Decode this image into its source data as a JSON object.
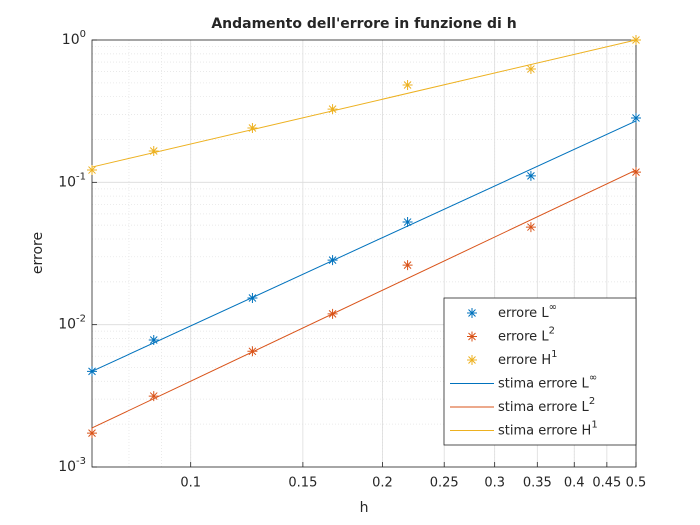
{
  "chart_data": {
    "type": "line",
    "title": "Andamento dell'errore in funzione di h",
    "xlabel": "h",
    "ylabel": "errore",
    "xscale": "log",
    "yscale": "log",
    "grid": true,
    "minor_grid": true,
    "legend": "southeast",
    "xlim": [
      0.07,
      0.5
    ],
    "ylim": [
      0.001,
      1
    ],
    "xticks": [
      0.1,
      0.15,
      0.2,
      0.25,
      0.3,
      0.35,
      0.4,
      0.45,
      0.5
    ],
    "yticks": [
      {
        "value": 0.001,
        "label": "10",
        "exponent": "-3"
      },
      {
        "value": 0.01,
        "label": "10",
        "exponent": "-2"
      },
      {
        "value": 0.1,
        "label": "10",
        "exponent": "-1"
      },
      {
        "value": 1,
        "label": "10",
        "exponent": "0"
      }
    ],
    "x": [
      0.07,
      0.0875,
      0.125,
      0.167,
      0.219,
      0.342,
      0.5
    ],
    "series": [
      {
        "name": "errore L",
        "name_sup": "∞",
        "color": "#0072BD",
        "marker": "*",
        "values": [
          0.0047,
          0.0078,
          0.0154,
          0.0284,
          0.0526,
          0.111,
          0.283
        ]
      },
      {
        "name": "errore L",
        "name_sup": "2",
        "color": "#D95319",
        "marker": "*",
        "values": [
          0.00173,
          0.00315,
          0.0065,
          0.0119,
          0.0262,
          0.0485,
          0.118
        ]
      },
      {
        "name": "errore H",
        "name_sup": "1",
        "color": "#EDB120",
        "marker": "*",
        "values": [
          0.122,
          0.166,
          0.241,
          0.327,
          0.483,
          0.625,
          1.0
        ]
      },
      {
        "name": "stima errore L",
        "name_sup": "∞",
        "color": "#0072BD",
        "x": [
          0.07,
          0.5
        ],
        "values": [
          0.0047,
          0.27
        ]
      },
      {
        "name": "stima errore L",
        "name_sup": "2",
        "color": "#D95319",
        "x": [
          0.07,
          0.5
        ],
        "values": [
          0.00188,
          0.122
        ]
      },
      {
        "name": "stima errore H",
        "name_sup": "1",
        "color": "#EDB120",
        "x": [
          0.07,
          0.5
        ],
        "values": [
          0.128,
          1.0
        ]
      }
    ]
  }
}
